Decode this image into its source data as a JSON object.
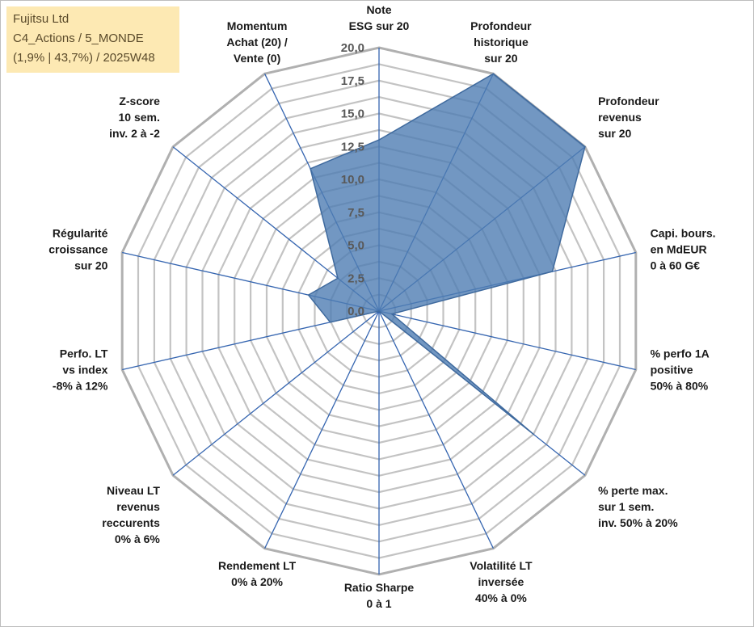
{
  "info": {
    "company": "Fujitsu Ltd",
    "portfolio": "C4_Actions / 5_MONDE",
    "stats": "(1,9% | 43,7%) / 2025W48"
  },
  "colors": {
    "fill": "#4f7db3",
    "fill_edge": "#3f6a9e",
    "axis_line": "#3565b0",
    "ring": "#c3c3c3",
    "outer_ring": "#b0b0b0"
  },
  "chart_data": {
    "type": "radar",
    "rmin": 0,
    "rmax": 20,
    "step": 1.25,
    "ticks": [
      "0,0",
      "2,5",
      "5,0",
      "7,5",
      "10,0",
      "12,5",
      "15,0",
      "17,5",
      "20,0"
    ],
    "axes": [
      {
        "label": [
          "Note",
          "ESG sur 20"
        ],
        "value": 13.0
      },
      {
        "label": [
          "Profondeur",
          "historique",
          "sur 20"
        ],
        "value": 20.0
      },
      {
        "label": [
          "Profondeur",
          "revenus",
          "sur 20"
        ],
        "value": 20.0
      },
      {
        "label": [
          "Capi. bours.",
          "en MdEUR",
          "0 à 60 G€"
        ],
        "value": 13.5
      },
      {
        "label": [
          "% perfo 1A",
          "positive",
          "50% à 80%"
        ],
        "value": 1.0
      },
      {
        "label": [
          "% perte max.",
          "sur 1 sem.",
          "inv. 50% à 20%"
        ],
        "value": 15.0
      },
      {
        "label": [
          "Volatilité LT",
          "inversée",
          "40% à 0%"
        ],
        "value": 0.0
      },
      {
        "label": [
          "Ratio Sharpe",
          "0 à 1"
        ],
        "value": 0.0
      },
      {
        "label": [
          "Rendement LT",
          "0% à 20%"
        ],
        "value": 0.0
      },
      {
        "label": [
          "Niveau LT",
          "revenus",
          "reccurents",
          "0% à 6%"
        ],
        "value": 0.0
      },
      {
        "label": [
          "Perfo. LT",
          "vs index",
          "-8% à 12%"
        ],
        "value": 3.8
      },
      {
        "label": [
          "Régularité",
          "croissance",
          "sur 20"
        ],
        "value": 5.5
      },
      {
        "label": [
          "Z-score",
          "10 sem.",
          "inv. 2 à -2"
        ],
        "value": 4.0
      },
      {
        "label": [
          "Momentum",
          "Achat (20) /",
          "Vente (0)"
        ],
        "value": 12.0
      }
    ]
  }
}
